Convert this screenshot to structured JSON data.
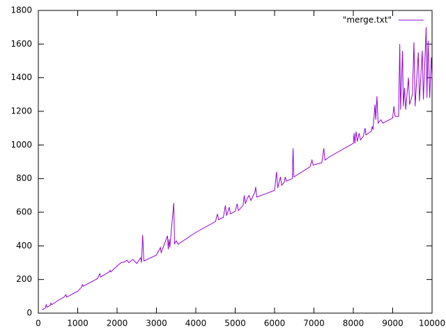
{
  "chart_data": {
    "type": "line",
    "x": [
      100,
      180,
      200,
      220,
      300,
      320,
      340,
      500,
      650,
      700,
      720,
      1000,
      1100,
      1120,
      1140,
      1500,
      1560,
      1580,
      1800,
      1820,
      1840,
      2000,
      2100,
      2200,
      2250,
      2300,
      2400,
      2500,
      2600,
      2620,
      2650,
      2680,
      3000,
      3100,
      3120,
      3280,
      3300,
      3320,
      3340,
      3440,
      3460,
      3500,
      3550,
      4000,
      4500,
      4550,
      4580,
      4700,
      4750,
      4780,
      4850,
      4880,
      5000,
      5050,
      5080,
      5200,
      5230,
      5260,
      5300,
      5350,
      5400,
      5500,
      5520,
      5550,
      6000,
      6050,
      6080,
      6150,
      6180,
      6250,
      6270,
      6300,
      6450,
      6470,
      6490,
      6900,
      6950,
      6980,
      7200,
      7250,
      7280,
      7400,
      8000,
      8020,
      8040,
      8070,
      8100,
      8150,
      8180,
      8250,
      8300,
      8320,
      8450,
      8480,
      8500,
      8550,
      8570,
      8600,
      8630,
      8700,
      8750,
      9000,
      9030,
      9060,
      9150,
      9180,
      9200,
      9250,
      9270,
      9300,
      9330,
      9400,
      9430,
      9500,
      9540,
      9570,
      9650,
      9680,
      9750,
      9780,
      9850,
      9870,
      9900,
      9940,
      9980,
      10000
    ],
    "series": [
      {
        "name": "\"merge.txt\"",
        "color": "#9400d3",
        "values": [
          20,
          30,
          50,
          35,
          45,
          60,
          50,
          75,
          95,
          110,
          95,
          130,
          155,
          170,
          160,
          205,
          235,
          215,
          245,
          255,
          245,
          280,
          300,
          305,
          315,
          300,
          320,
          295,
          330,
          300,
          465,
          310,
          345,
          390,
          360,
          460,
          380,
          440,
          390,
          655,
          410,
          430,
          410,
          480,
          545,
          590,
          555,
          570,
          640,
          580,
          630,
          590,
          605,
          650,
          610,
          640,
          700,
          650,
          680,
          700,
          670,
          720,
          750,
          690,
          730,
          840,
          745,
          810,
          760,
          780,
          810,
          785,
          800,
          980,
          810,
          870,
          910,
          880,
          895,
          980,
          910,
          930,
          1010,
          1070,
          1010,
          1080,
          1020,
          1070,
          1030,
          1050,
          1100,
          1060,
          1080,
          1110,
          1090,
          1240,
          1150,
          1290,
          1130,
          1150,
          1130,
          1160,
          1230,
          1170,
          1170,
          1600,
          1210,
          1560,
          1230,
          1340,
          1210,
          1400,
          1240,
          1300,
          1610,
          1230,
          1550,
          1260,
          1560,
          1270,
          1700,
          1280,
          1620,
          1280,
          1520,
          1400
        ]
      }
    ],
    "xlim": [
      0,
      10000
    ],
    "ylim": [
      0,
      1800
    ],
    "xticks": [
      0,
      1000,
      2000,
      3000,
      4000,
      5000,
      6000,
      7000,
      8000,
      9000,
      10000
    ],
    "yticks": [
      0,
      200,
      400,
      600,
      800,
      1000,
      1200,
      1400,
      1600,
      1800
    ],
    "legend": "top-right"
  }
}
